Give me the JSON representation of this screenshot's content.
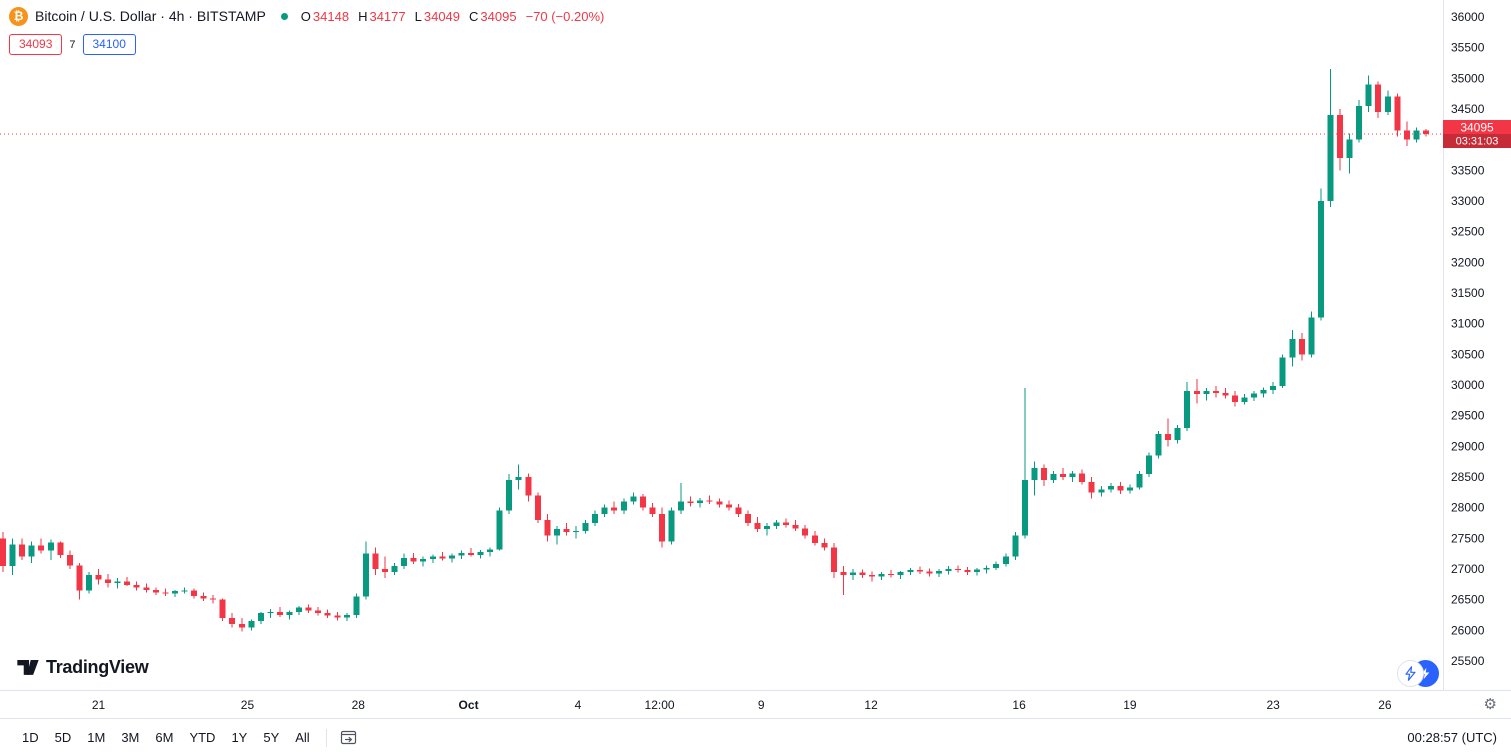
{
  "header": {
    "symbol_title": "Bitcoin / U.S. Dollar · 4h · BITSTAMP",
    "ohlc": {
      "o_label": "O",
      "o_value": "34148",
      "h_label": "H",
      "h_value": "34177",
      "l_label": "L",
      "l_value": "34049",
      "c_label": "C",
      "c_value": "34095",
      "change": "−70 (−0.20%)"
    },
    "bid": "34093",
    "spread": "7",
    "ask": "34100"
  },
  "watermark": "TradingView",
  "price_label": {
    "price": "34095",
    "countdown": "03:31:03"
  },
  "icons": {
    "bitcoin": "₿",
    "gear": "⚙"
  },
  "colors": {
    "up": "#089981",
    "down": "#f23645",
    "accent": "#2962ff",
    "bitcoin_orange": "#f7931a",
    "axis_text": "#131722",
    "border": "#e0e3eb"
  },
  "toolbar": {
    "ranges": [
      "1D",
      "5D",
      "1M",
      "3M",
      "6M",
      "YTD",
      "1Y",
      "5Y",
      "All"
    ],
    "clock": "00:28:57 (UTC)"
  },
  "chart_data": {
    "type": "candlestick",
    "title": "Bitcoin / U.S. Dollar",
    "exchange": "BITSTAMP",
    "interval": "4h",
    "legend_position": "top-left",
    "grid": false,
    "ohlc_readout": {
      "open": 34148,
      "high": 34177,
      "low": 34049,
      "close": 34095,
      "change": -70,
      "change_pct": -0.2
    },
    "current_price": 34095,
    "y_axis": {
      "min": 25500,
      "max": 36000,
      "step": 500
    },
    "x_ticks": [
      {
        "label": "21",
        "index": 10
      },
      {
        "label": "25",
        "index": 25.6
      },
      {
        "label": "28",
        "index": 37.2
      },
      {
        "label": "Oct",
        "index": 48.75,
        "major": true
      },
      {
        "label": "4",
        "index": 60.2
      },
      {
        "label": "12:00",
        "index": 68.75
      },
      {
        "label": "9",
        "index": 79.4
      },
      {
        "label": "12",
        "index": 90.9
      },
      {
        "label": "16",
        "index": 106.4
      },
      {
        "label": "19",
        "index": 118
      },
      {
        "label": "23",
        "index": 133
      },
      {
        "label": "26",
        "index": 144.7
      }
    ],
    "candles": [
      [
        27500,
        27600,
        26950,
        27050
      ],
      [
        27050,
        27500,
        26900,
        27400
      ],
      [
        27400,
        27500,
        27150,
        27200
      ],
      [
        27200,
        27450,
        27100,
        27380
      ],
      [
        27380,
        27500,
        27250,
        27300
      ],
      [
        27300,
        27480,
        27150,
        27430
      ],
      [
        27430,
        27450,
        27180,
        27230
      ],
      [
        27230,
        27300,
        27000,
        27060
      ],
      [
        27060,
        27100,
        26500,
        26650
      ],
      [
        26650,
        26950,
        26600,
        26900
      ],
      [
        26900,
        27000,
        26750,
        26830
      ],
      [
        26830,
        26920,
        26700,
        26770
      ],
      [
        26770,
        26850,
        26680,
        26800
      ],
      [
        26800,
        26870,
        26720,
        26740
      ],
      [
        26740,
        26800,
        26650,
        26700
      ],
      [
        26700,
        26760,
        26620,
        26660
      ],
      [
        26660,
        26700,
        26580,
        26620
      ],
      [
        26620,
        26680,
        26560,
        26600
      ],
      [
        26600,
        26660,
        26540,
        26640
      ],
      [
        26640,
        26700,
        26600,
        26650
      ],
      [
        26650,
        26680,
        26520,
        26560
      ],
      [
        26560,
        26620,
        26480,
        26520
      ],
      [
        26520,
        26580,
        26440,
        26500
      ],
      [
        26500,
        26520,
        26150,
        26200
      ],
      [
        26200,
        26280,
        26050,
        26100
      ],
      [
        26100,
        26200,
        25980,
        26050
      ],
      [
        26050,
        26180,
        26000,
        26150
      ],
      [
        26150,
        26300,
        26100,
        26280
      ],
      [
        26280,
        26350,
        26200,
        26300
      ],
      [
        26300,
        26380,
        26220,
        26250
      ],
      [
        26250,
        26320,
        26180,
        26300
      ],
      [
        26300,
        26400,
        26250,
        26370
      ],
      [
        26370,
        26420,
        26280,
        26320
      ],
      [
        26320,
        26380,
        26240,
        26280
      ],
      [
        26280,
        26340,
        26200,
        26240
      ],
      [
        26240,
        26300,
        26160,
        26210
      ],
      [
        26210,
        26280,
        26150,
        26250
      ],
      [
        26250,
        26600,
        26200,
        26550
      ],
      [
        26550,
        27450,
        26500,
        27250
      ],
      [
        27250,
        27350,
        26900,
        27000
      ],
      [
        27000,
        27200,
        26850,
        26950
      ],
      [
        26950,
        27100,
        26900,
        27050
      ],
      [
        27050,
        27250,
        27000,
        27180
      ],
      [
        27180,
        27260,
        27080,
        27120
      ],
      [
        27120,
        27200,
        27040,
        27160
      ],
      [
        27160,
        27240,
        27100,
        27200
      ],
      [
        27200,
        27280,
        27140,
        27170
      ],
      [
        27170,
        27250,
        27110,
        27220
      ],
      [
        27220,
        27300,
        27160,
        27260
      ],
      [
        27260,
        27340,
        27200,
        27230
      ],
      [
        27230,
        27310,
        27170,
        27280
      ],
      [
        27280,
        27350,
        27200,
        27320
      ],
      [
        27320,
        28000,
        27300,
        27950
      ],
      [
        27950,
        28550,
        27900,
        28450
      ],
      [
        28450,
        28700,
        28300,
        28500
      ],
      [
        28500,
        28560,
        28100,
        28200
      ],
      [
        28200,
        28250,
        27750,
        27800
      ],
      [
        27800,
        27900,
        27450,
        27550
      ],
      [
        27550,
        27700,
        27400,
        27650
      ],
      [
        27650,
        27750,
        27550,
        27600
      ],
      [
        27600,
        27700,
        27500,
        27620
      ],
      [
        27620,
        27800,
        27580,
        27750
      ],
      [
        27750,
        27950,
        27700,
        27900
      ],
      [
        27900,
        28050,
        27850,
        28000
      ],
      [
        28000,
        28100,
        27900,
        27950
      ],
      [
        27950,
        28150,
        27900,
        28100
      ],
      [
        28100,
        28250,
        28050,
        28180
      ],
      [
        28180,
        28220,
        27950,
        28000
      ],
      [
        28000,
        28080,
        27850,
        27900
      ],
      [
        27900,
        28000,
        27350,
        27450
      ],
      [
        27450,
        28000,
        27400,
        27950
      ],
      [
        27950,
        28400,
        27900,
        28100
      ],
      [
        28100,
        28180,
        28020,
        28080
      ],
      [
        28080,
        28160,
        28000,
        28120
      ],
      [
        28120,
        28200,
        28060,
        28100
      ],
      [
        28100,
        28150,
        28000,
        28050
      ],
      [
        28050,
        28120,
        27950,
        28000
      ],
      [
        28000,
        28060,
        27850,
        27900
      ],
      [
        27900,
        27950,
        27700,
        27750
      ],
      [
        27750,
        27850,
        27600,
        27650
      ],
      [
        27650,
        27750,
        27550,
        27700
      ],
      [
        27700,
        27800,
        27650,
        27760
      ],
      [
        27760,
        27820,
        27680,
        27720
      ],
      [
        27720,
        27800,
        27620,
        27660
      ],
      [
        27660,
        27720,
        27500,
        27550
      ],
      [
        27550,
        27620,
        27380,
        27420
      ],
      [
        27420,
        27500,
        27300,
        27350
      ],
      [
        27350,
        27420,
        26850,
        26950
      ],
      [
        26950,
        27050,
        26580,
        26900
      ],
      [
        26900,
        27000,
        26820,
        26940
      ],
      [
        26940,
        26990,
        26850,
        26900
      ],
      [
        26900,
        26960,
        26800,
        26880
      ],
      [
        26880,
        26950,
        26820,
        26920
      ],
      [
        26920,
        26980,
        26860,
        26900
      ],
      [
        26900,
        26970,
        26840,
        26950
      ],
      [
        26950,
        27020,
        26900,
        26980
      ],
      [
        26980,
        27040,
        26920,
        26960
      ],
      [
        26960,
        27010,
        26880,
        26930
      ],
      [
        26930,
        27000,
        26870,
        26970
      ],
      [
        26970,
        27050,
        26910,
        27000
      ],
      [
        27000,
        27060,
        26940,
        26980
      ],
      [
        26980,
        27030,
        26900,
        26950
      ],
      [
        26950,
        27020,
        26890,
        26990
      ],
      [
        26990,
        27060,
        26930,
        27020
      ],
      [
        27020,
        27120,
        26980,
        27080
      ],
      [
        27080,
        27250,
        27040,
        27200
      ],
      [
        27200,
        27600,
        27150,
        27550
      ],
      [
        27550,
        29950,
        27500,
        28450
      ],
      [
        28450,
        28750,
        28200,
        28650
      ],
      [
        28650,
        28700,
        28350,
        28450
      ],
      [
        28450,
        28600,
        28400,
        28550
      ],
      [
        28550,
        28650,
        28450,
        28500
      ],
      [
        28500,
        28600,
        28420,
        28560
      ],
      [
        28560,
        28620,
        28380,
        28420
      ],
      [
        28420,
        28500,
        28150,
        28250
      ],
      [
        28250,
        28350,
        28180,
        28300
      ],
      [
        28300,
        28400,
        28250,
        28350
      ],
      [
        28350,
        28420,
        28220,
        28280
      ],
      [
        28280,
        28380,
        28230,
        28330
      ],
      [
        28330,
        28600,
        28300,
        28550
      ],
      [
        28550,
        28900,
        28500,
        28850
      ],
      [
        28850,
        29250,
        28800,
        29200
      ],
      [
        29200,
        29450,
        29000,
        29100
      ],
      [
        29100,
        29350,
        29050,
        29300
      ],
      [
        29300,
        30050,
        29250,
        29900
      ],
      [
        29900,
        30100,
        29700,
        29850
      ],
      [
        29850,
        29950,
        29750,
        29900
      ],
      [
        29900,
        29980,
        29800,
        29870
      ],
      [
        29870,
        29950,
        29780,
        29830
      ],
      [
        29830,
        29900,
        29650,
        29720
      ],
      [
        29720,
        29850,
        29680,
        29800
      ],
      [
        29800,
        29900,
        29740,
        29860
      ],
      [
        29860,
        29960,
        29800,
        29920
      ],
      [
        29920,
        30050,
        29850,
        29980
      ],
      [
        29980,
        30500,
        29950,
        30450
      ],
      [
        30450,
        30900,
        30300,
        30750
      ],
      [
        30750,
        30850,
        30400,
        30500
      ],
      [
        30500,
        31200,
        30450,
        31100
      ],
      [
        31100,
        33200,
        31050,
        33000
      ],
      [
        33000,
        35150,
        32900,
        34400
      ],
      [
        34400,
        34500,
        33500,
        33700
      ],
      [
        33700,
        34100,
        33450,
        34000
      ],
      [
        34000,
        34650,
        33950,
        34550
      ],
      [
        34550,
        35050,
        34450,
        34900
      ],
      [
        34900,
        34950,
        34350,
        34450
      ],
      [
        34450,
        34800,
        34400,
        34700
      ],
      [
        34700,
        34750,
        34050,
        34150
      ],
      [
        34150,
        34300,
        33900,
        34000
      ],
      [
        34000,
        34200,
        33950,
        34150
      ],
      [
        34148,
        34177,
        34049,
        34095
      ]
    ]
  }
}
